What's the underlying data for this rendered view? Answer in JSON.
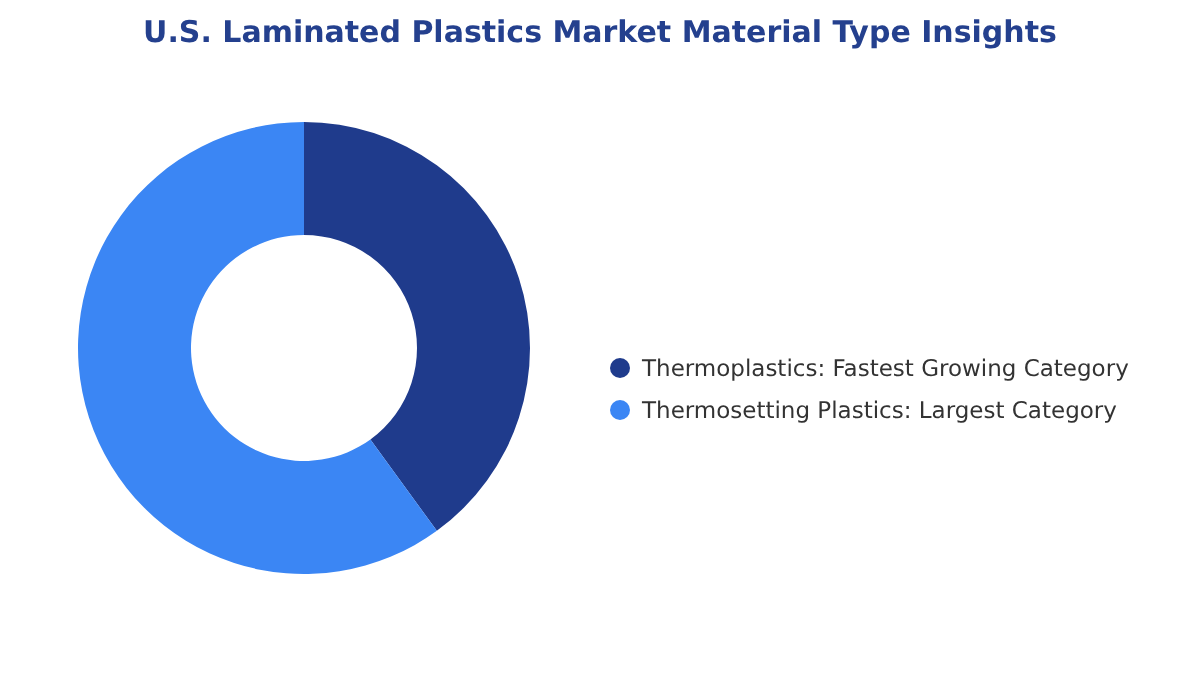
{
  "chart_data": {
    "type": "donut",
    "title": "U.S. Laminated Plastics Market Material Type Insights",
    "categories": [
      "Thermoplastics: Fastest Growing Category",
      "Thermosetting Plastics: Largest Category"
    ],
    "values": [
      40,
      60
    ],
    "colors": [
      "#1f3b8c",
      "#3b86f4"
    ],
    "legend": "right"
  }
}
